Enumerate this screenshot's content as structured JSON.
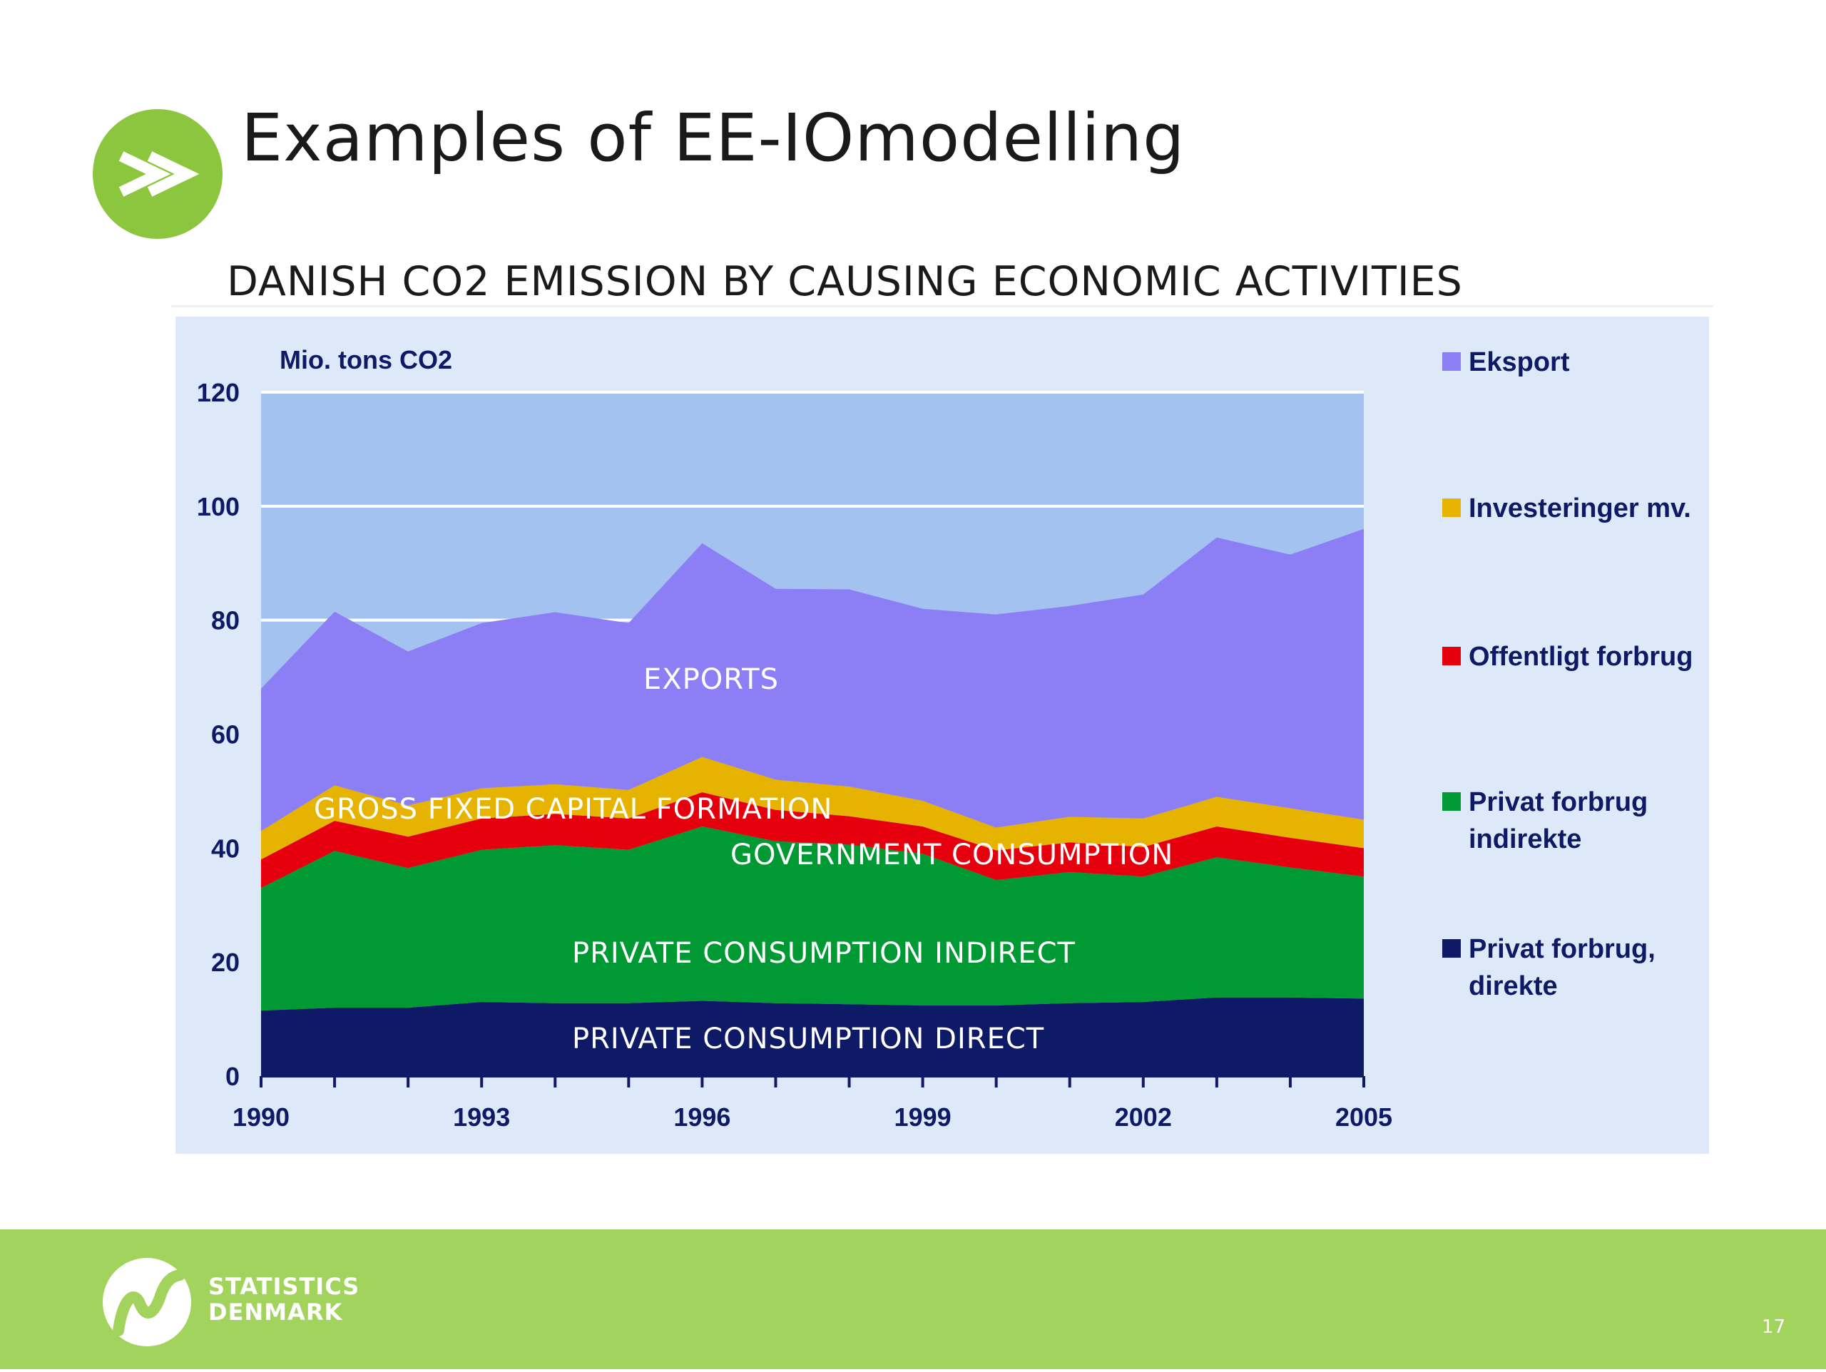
{
  "slide": {
    "title": "Examples of EE-IOmodelling",
    "subtitle": "DANISH CO2 EMISSION BY CAUSING ECONOMIC ACTIVITIES",
    "page_number": "17"
  },
  "footer": {
    "brand_line1": "STATISTICS",
    "brand_line2": "DENMARK",
    "logo_icon": "statistics-denmark-logo-icon",
    "bullet_icon": "double-chevron-right-icon",
    "accent_color": "#a2d35c"
  },
  "chart_data": {
    "type": "area",
    "stacked": true,
    "unit_label": "Mio. tons CO2",
    "x": [
      1990,
      1991,
      1992,
      1993,
      1994,
      1995,
      1996,
      1997,
      1998,
      1999,
      2000,
      2001,
      2002,
      2003,
      2004,
      2005
    ],
    "x_tick_labels": [
      "1990",
      "1993",
      "1996",
      "1999",
      "2002",
      "2005"
    ],
    "ylim": [
      0,
      120
    ],
    "y_tick_labels": [
      "0",
      "20",
      "40",
      "60",
      "80",
      "100",
      "120"
    ],
    "grid": "horizontal",
    "legend_position": "right",
    "series": [
      {
        "name": "Privat forbrug, direkte",
        "color": "#0f1a66",
        "overlay_label": "PRIVATE CONSUMPTION DIRECT",
        "values": [
          11.5,
          12,
          12,
          13,
          12.8,
          12.8,
          13.2,
          12.8,
          12.6,
          12.4,
          12.4,
          12.8,
          13,
          13.8,
          13.8,
          13.6
        ]
      },
      {
        "name": "Privat forbrug indirekte",
        "color": "#009933",
        "overlay_label": "PRIVATE CONSUMPTION INDIRECT",
        "values": [
          21.5,
          27.5,
          24.5,
          26.7,
          27.7,
          26.9,
          30.6,
          28.4,
          28,
          26.6,
          22,
          23,
          22,
          24.6,
          22.8,
          21.4
        ]
      },
      {
        "name": "Offentligt forbrug",
        "color": "#e6000e",
        "overlay_label": "GOVERNMENT CONSUMPTION",
        "values": [
          5,
          5.3,
          5.5,
          5.5,
          5.5,
          5.5,
          6,
          5.5,
          5,
          4.8,
          5.2,
          5.2,
          5.2,
          5.4,
          5.2,
          5
        ]
      },
      {
        "name": "Investeringer mv.",
        "color": "#e6b300",
        "overlay_label": "GROSS FIXED CAPITAL FORMATION",
        "values": [
          5,
          6.2,
          5.5,
          5.3,
          5.2,
          5,
          6.2,
          5.3,
          5.2,
          4.5,
          4,
          4.5,
          5,
          5.2,
          5.2,
          5
        ]
      },
      {
        "name": "Eksport",
        "color": "#8c7ff5",
        "overlay_label": "EXPORTS",
        "values": [
          25,
          30.5,
          27,
          29,
          30.2,
          29.3,
          37.5,
          33.5,
          34.6,
          33.7,
          37.4,
          37,
          39.3,
          45.5,
          44.5,
          51
        ]
      }
    ],
    "legend_entries": [
      "Eksport",
      "Investeringer mv.",
      "Offentligt forbrug",
      "Privat forbrug indirekte",
      "Privat forbrug, direkte"
    ]
  }
}
